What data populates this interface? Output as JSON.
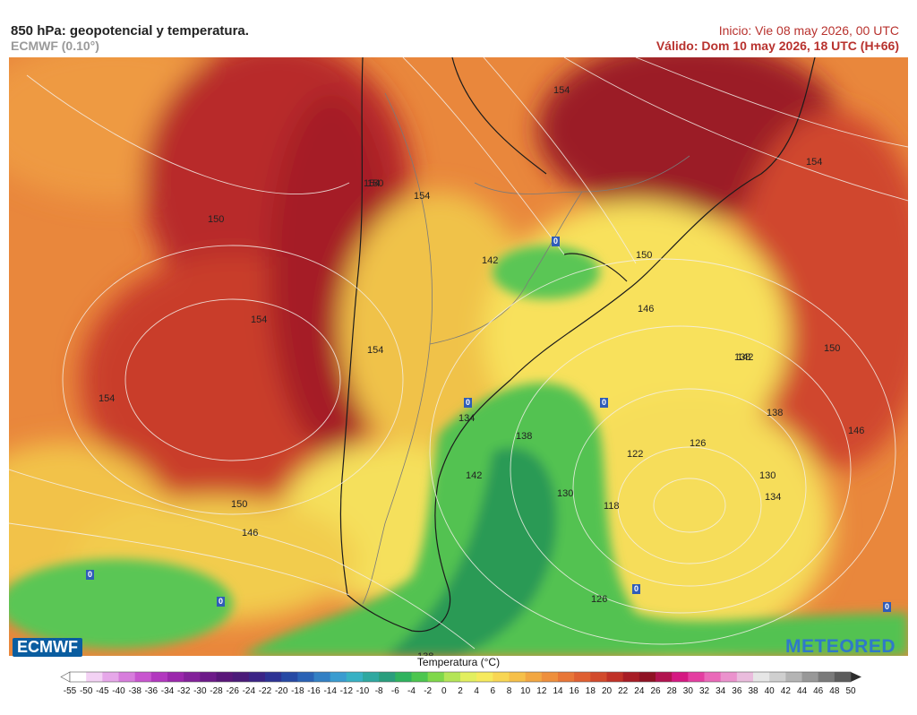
{
  "header": {
    "title": "850 hPa: geopotencial y temperatura.",
    "model": "ECMWF (0.10°)",
    "init": "Inicio: Vie 08 may 2026, 00 UTC",
    "valid": "Válido: Dom 10 may 2026, 18 UTC (H+66)"
  },
  "logos": {
    "left": "ECMWF",
    "right": "METEORED"
  },
  "legend": {
    "title": "Temperatura (°C)",
    "ticks": [
      "-55",
      "-50",
      "-45",
      "-40",
      "-38",
      "-36",
      "-34",
      "-32",
      "-30",
      "-28",
      "-26",
      "-24",
      "-22",
      "-20",
      "-18",
      "-16",
      "-14",
      "-12",
      "-10",
      "-8",
      "-6",
      "-4",
      "-2",
      "0",
      "2",
      "4",
      "6",
      "8",
      "10",
      "12",
      "14",
      "16",
      "18",
      "20",
      "22",
      "24",
      "26",
      "28",
      "30",
      "32",
      "34",
      "36",
      "38",
      "40",
      "42",
      "44",
      "46",
      "48",
      "50"
    ],
    "colors": [
      "#ffffff",
      "#f3d2f4",
      "#e6a7e9",
      "#d77ddc",
      "#c855cf",
      "#b237bf",
      "#9b27ac",
      "#83219a",
      "#6d1a89",
      "#591679",
      "#4a1a78",
      "#3b2486",
      "#2d3394",
      "#2649a4",
      "#2a62b5",
      "#3380c4",
      "#3a9cd0",
      "#38b1c4",
      "#2fa8a0",
      "#2a9e7d",
      "#2fb35e",
      "#4cc64f",
      "#7fd84a",
      "#b4e557",
      "#e2ef5f",
      "#f6ea5d",
      "#f8d653",
      "#f6c049",
      "#f2a742",
      "#ee8f3c",
      "#e87637",
      "#df5f31",
      "#d24a2c",
      "#c03127",
      "#a71c25",
      "#8f1224",
      "#b1134f",
      "#d51882",
      "#e43ea1",
      "#ea69b9",
      "#eb92cd",
      "#eabcdd",
      "#e6e6e6",
      "#cfcfcf",
      "#b4b4b4",
      "#989898",
      "#7a7a7a",
      "#5c5c5c"
    ]
  },
  "map": {
    "contour_labels": [
      "154",
      "154",
      "150",
      "154",
      "150",
      "154",
      "154",
      "154",
      "150",
      "146",
      "150",
      "142",
      "154",
      "138",
      "146",
      "138",
      "142",
      "126",
      "134",
      "122",
      "130",
      "130",
      "150",
      "146",
      "118",
      "134",
      "142",
      "126",
      "138",
      "138"
    ],
    "zero_markers": [
      "0",
      "0",
      "0",
      "0",
      "0",
      "0",
      "0"
    ]
  }
}
